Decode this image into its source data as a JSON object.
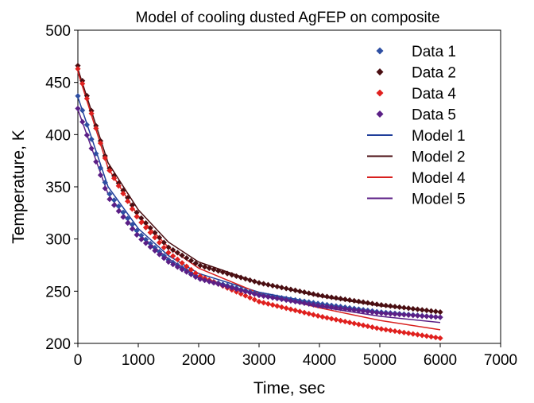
{
  "chart_data": {
    "type": "scatter",
    "title": "Model of cooling dusted AgFEP on composite",
    "xlabel": "Time, sec",
    "ylabel": "Temperature, K",
    "xlim": [
      0,
      7000
    ],
    "ylim": [
      200,
      500
    ],
    "x_ticks": [
      0,
      1000,
      2000,
      3000,
      4000,
      5000,
      6000,
      7000
    ],
    "y_ticks": [
      200,
      250,
      300,
      350,
      400,
      450,
      500
    ],
    "grid": false,
    "legend_position": "top-right",
    "series": [
      {
        "name": "Data 1",
        "kind": "marker",
        "marker": "diamond",
        "color": "#2E4FA3",
        "x": [
          0,
          500,
          1000,
          1500,
          2000,
          3000,
          4000,
          5000,
          6000
        ],
        "y": [
          437,
          345,
          306,
          280,
          263,
          247,
          238,
          230,
          225
        ]
      },
      {
        "name": "Data 2",
        "kind": "marker",
        "marker": "diamond",
        "color": "#4A0E12",
        "x": [
          0,
          500,
          1000,
          1500,
          2000,
          3000,
          4000,
          5000,
          6000
        ],
        "y": [
          466,
          370,
          323,
          292,
          275,
          258,
          246,
          237,
          230
        ]
      },
      {
        "name": "Data 4",
        "kind": "marker",
        "marker": "diamond",
        "color": "#E0201E",
        "x": [
          0,
          500,
          1000,
          1500,
          2000,
          3000,
          4000,
          5000,
          6000
        ],
        "y": [
          463,
          368,
          319,
          287,
          265,
          240,
          226,
          214,
          205
        ]
      },
      {
        "name": "Data 5",
        "kind": "marker",
        "marker": "diamond",
        "color": "#5B1F86",
        "x": [
          0,
          500,
          1000,
          1500,
          2000,
          3000,
          4000,
          5000,
          6000
        ],
        "y": [
          425,
          340,
          302,
          278,
          262,
          246,
          236,
          229,
          225
        ]
      },
      {
        "name": "Model 1",
        "kind": "line",
        "color": "#1F3E9A",
        "x": [
          0,
          500,
          1000,
          1500,
          2000,
          3000,
          4000,
          5000,
          6000
        ],
        "y": [
          436,
          350,
          310,
          284,
          267,
          249,
          238,
          230,
          225
        ]
      },
      {
        "name": "Model 2",
        "kind": "line",
        "color": "#4A0E12",
        "x": [
          0,
          500,
          1000,
          1500,
          2000,
          3000,
          4000,
          5000,
          6000
        ],
        "y": [
          463,
          373,
          328,
          297,
          278,
          258,
          245,
          236,
          230
        ]
      },
      {
        "name": "Model 4",
        "kind": "line",
        "color": "#D8201E",
        "x": [
          0,
          500,
          1000,
          1500,
          2000,
          3000,
          4000,
          5000,
          6000
        ],
        "y": [
          460,
          368,
          322,
          292,
          272,
          248,
          234,
          222,
          213
        ]
      },
      {
        "name": "Model 5",
        "kind": "line",
        "color": "#5B1F86",
        "x": [
          0,
          500,
          1000,
          1500,
          2000,
          3000,
          4000,
          5000,
          6000
        ],
        "y": [
          424,
          343,
          305,
          281,
          264,
          246,
          235,
          226,
          220
        ]
      }
    ]
  }
}
